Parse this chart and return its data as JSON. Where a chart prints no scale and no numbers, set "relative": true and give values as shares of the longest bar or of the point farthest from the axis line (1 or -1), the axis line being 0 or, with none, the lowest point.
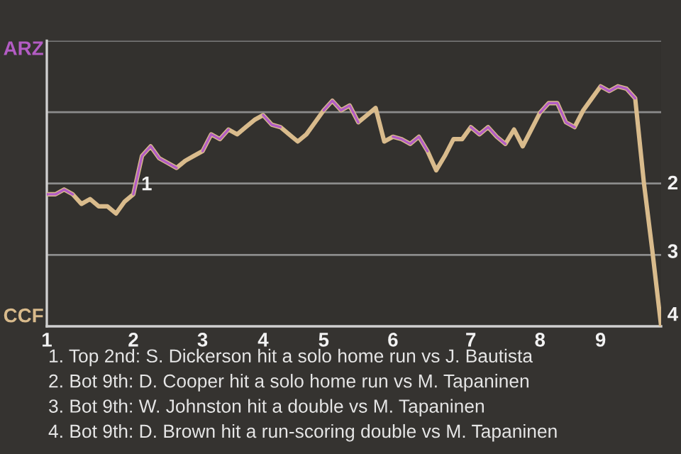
{
  "chart_data": {
    "type": "line",
    "relative": true,
    "categories": [
      "1",
      null,
      null,
      null,
      null,
      null,
      null,
      null,
      null,
      null,
      "2",
      null,
      null,
      null,
      null,
      null,
      null,
      null,
      "3",
      null,
      null,
      null,
      null,
      null,
      null,
      "4",
      null,
      null,
      null,
      null,
      null,
      null,
      "5",
      null,
      null,
      null,
      null,
      null,
      null,
      null,
      "6",
      null,
      null,
      null,
      null,
      null,
      null,
      null,
      null,
      "7",
      null,
      null,
      null,
      null,
      null,
      null,
      null,
      "8",
      null,
      null,
      null,
      null,
      null,
      null,
      "9",
      null,
      null,
      null,
      null,
      null,
      null,
      null
    ],
    "series": [
      {
        "color": "#d9bb8c",
        "values": [
          0.55,
          0.55,
          0.57,
          0.55,
          0.51,
          0.53,
          0.5,
          0.5,
          0.47,
          0.52,
          0.55,
          0.71,
          0.75,
          0.7,
          0.68,
          0.66,
          0.69,
          0.71,
          0.73,
          0.8,
          0.78,
          0.82,
          0.8,
          0.83,
          0.86,
          0.88,
          0.84,
          0.83,
          0.8,
          0.77,
          0.8,
          0.85,
          0.9,
          0.94,
          0.9,
          0.92,
          0.85,
          0.88,
          0.91,
          0.77,
          0.79,
          0.78,
          0.76,
          0.79,
          0.73,
          0.65,
          0.71,
          0.78,
          0.78,
          0.83,
          0.8,
          0.83,
          0.79,
          0.76,
          0.82,
          0.75,
          0.82,
          0.89,
          0.93,
          0.93,
          0.85,
          0.83,
          0.9,
          0.95,
          1,
          0.98,
          1,
          0.99,
          0.95,
          0.6,
          0.31,
          0
        ]
      },
      {
        "color": "#b35cc4",
        "values": [
          0.55,
          0.55,
          0.57,
          0.55,
          null,
          null,
          null,
          null,
          null,
          null,
          0.55,
          0.71,
          0.75,
          0.7,
          0.68,
          0.66,
          null,
          null,
          0.73,
          0.8,
          0.78,
          0.82,
          null,
          null,
          null,
          0.88,
          0.84,
          0.83,
          null,
          null,
          null,
          null,
          0.9,
          0.94,
          0.9,
          0.92,
          0.85,
          null,
          null,
          null,
          0.79,
          0.78,
          0.76,
          0.79,
          0.73,
          null,
          null,
          null,
          null,
          0.83,
          0.8,
          0.83,
          0.79,
          0.76,
          null,
          null,
          null,
          0.89,
          0.93,
          0.93,
          0.85,
          0.83,
          null,
          null,
          1,
          0.98,
          1,
          0.99,
          0.95,
          null,
          null,
          null
        ]
      }
    ],
    "grid": "y",
    "marker": "none",
    "line_style": "solid",
    "annotations": [
      "ARZ",
      "CCF",
      {
        "text": "1",
        "x": "2",
        "y": 0.55
      },
      "2",
      "3",
      "4",
      "1. Top 2nd: S. Dickerson hit a solo home run vs J. Bautista",
      "2. Bot 9th: D. Cooper hit a solo home run vs M. Tapaninen",
      "3. Bot 9th: W. Johnston hit a double vs M. Tapaninen",
      "4. Bot 9th: D. Brown hit a run-scoring double vs M. Tapaninen"
    ]
  }
}
